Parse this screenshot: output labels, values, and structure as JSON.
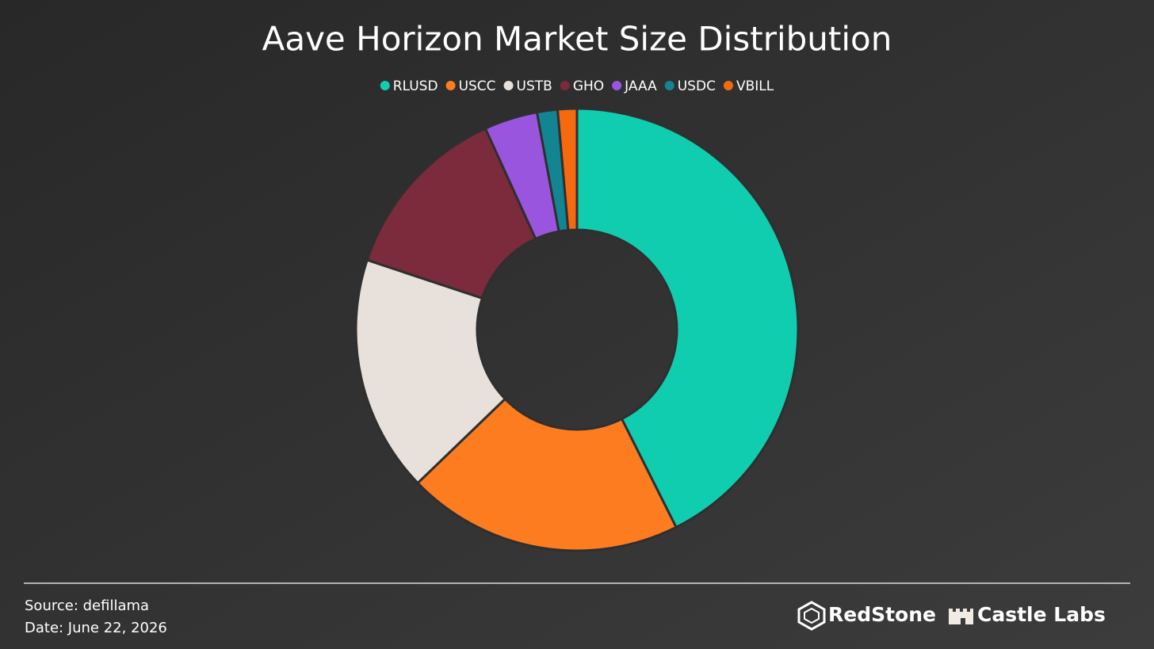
{
  "chart_data": {
    "type": "donut",
    "title": "Aave Horizon Market Size Distribution",
    "categories": [
      "RLUSD",
      "USCC",
      "USTB",
      "GHO",
      "JAAA",
      "USDC",
      "VBILL"
    ],
    "values": [
      42.6,
      20.2,
      17.3,
      13.1,
      3.9,
      1.5,
      1.4
    ],
    "colors": [
      "#10cdb0",
      "#fd7c1f",
      "#e8e0da",
      "#7b2b3b",
      "#9a55de",
      "#138592",
      "#f56a0f"
    ],
    "legend": "top"
  },
  "footer": {
    "source": "Source: defillama",
    "date": "Date: June 22, 2026",
    "logos": [
      "RedStone",
      "Castle Labs"
    ]
  }
}
